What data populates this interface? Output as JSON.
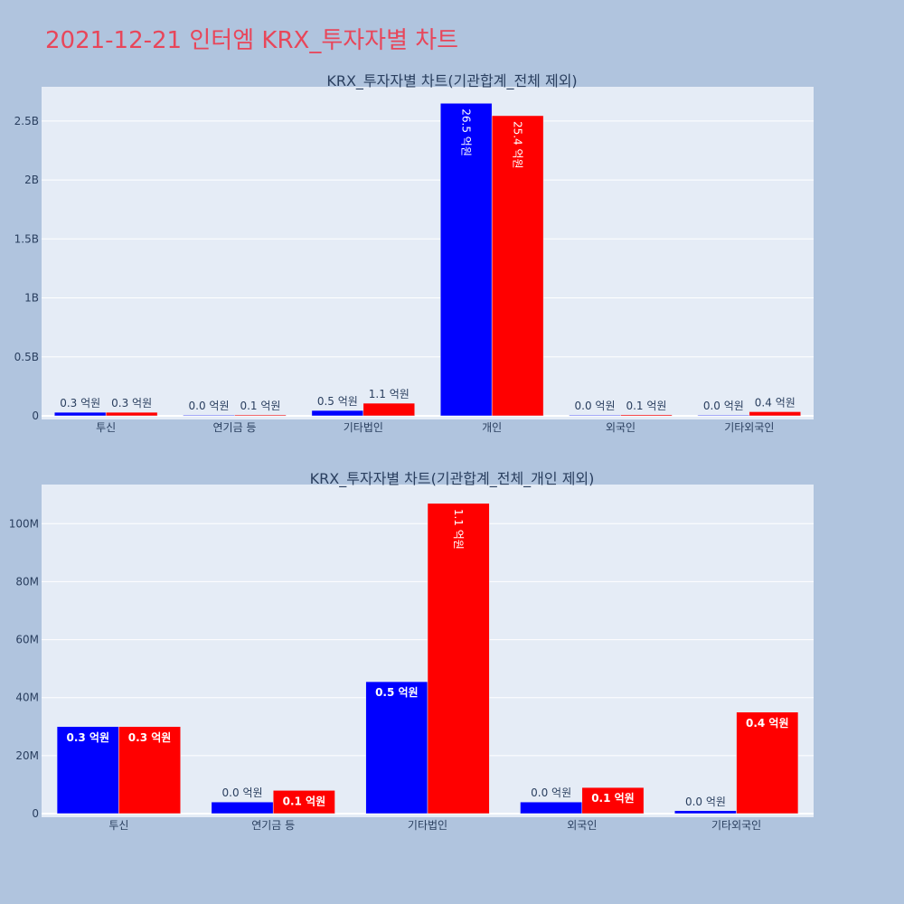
{
  "page_title": "2021-12-21 인터엠 KRX_투자자별 차트",
  "colors": {
    "background": "#b0c4de",
    "plot_bg": "#e5ecf6",
    "title": "#e8465a",
    "series_a": "#0000ff",
    "series_b": "#ff0000"
  },
  "chart_data": [
    {
      "type": "bar",
      "title": "KRX_투자자별 차트(기관합계_전체 제외)",
      "categories": [
        "투신",
        "연기금 등",
        "기타법인",
        "개인",
        "외국인",
        "기타외국인"
      ],
      "series": [
        {
          "color": "#0000ff",
          "values": [
            30000000,
            4000000,
            45500000,
            2650000000,
            4000000,
            1000000
          ],
          "labels": [
            "0.3 억원",
            "0.0 억원",
            "0.5 억원",
            "26.5 억원",
            "0.0 억원",
            "0.0 억원"
          ]
        },
        {
          "color": "#ff0000",
          "values": [
            30000000,
            8000000,
            107000000,
            2545000000,
            9000000,
            35000000
          ],
          "labels": [
            "0.3 억원",
            "0.1 억원",
            "1.1 억원",
            "25.4 억원",
            "0.1 억원",
            "0.4 억원"
          ]
        }
      ],
      "ylim": [
        0,
        2790000000
      ],
      "yticks": [
        0,
        500000000,
        1000000000,
        1500000000,
        2000000000,
        2500000000
      ],
      "ytick_labels": [
        "0",
        "0.5B",
        "1B",
        "1.5B",
        "2B",
        "2.5B"
      ],
      "grid": true
    },
    {
      "type": "bar",
      "title": "KRX_투자자별 차트(기관합계_전체_개인 제외)",
      "categories": [
        "투신",
        "연기금 등",
        "기타법인",
        "외국인",
        "기타외국인"
      ],
      "series": [
        {
          "color": "#0000ff",
          "values": [
            30000000,
            4000000,
            45500000,
            4000000,
            1000000
          ],
          "labels": [
            "0.3 억원",
            "0.0 억원",
            "0.5 억원",
            "0.0 억원",
            "0.0 억원"
          ]
        },
        {
          "color": "#ff0000",
          "values": [
            30000000,
            8000000,
            107000000,
            9000000,
            35000000
          ],
          "labels": [
            "0.3 억원",
            "0.1 억원",
            "1.1 억원",
            "0.1 억원",
            "0.4 억원"
          ]
        }
      ],
      "ylim": [
        0,
        113500000
      ],
      "yticks": [
        0,
        20000000,
        40000000,
        60000000,
        80000000,
        100000000
      ],
      "ytick_labels": [
        "0",
        "20M",
        "40M",
        "60M",
        "80M",
        "100M"
      ],
      "grid": true
    }
  ]
}
